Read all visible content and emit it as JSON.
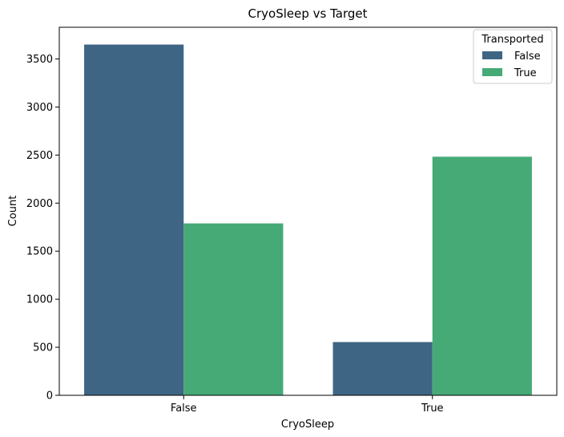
{
  "chart_data": {
    "type": "bar",
    "title": "CryoSleep vs Target",
    "xlabel": "CryoSleep",
    "ylabel": "Count",
    "categories": [
      "False",
      "True"
    ],
    "series": [
      {
        "name": "False",
        "values": [
          3650,
          554
        ],
        "color": "#3e6584"
      },
      {
        "name": "True",
        "values": [
          1789,
          2483
        ],
        "color": "#46aa77"
      }
    ],
    "ylim": [
      0,
      3830
    ],
    "yticks": [
      0,
      500,
      1000,
      1500,
      2000,
      2500,
      3000,
      3500
    ],
    "legend": {
      "title": "Transported",
      "position": "top-right"
    },
    "grid": false
  }
}
